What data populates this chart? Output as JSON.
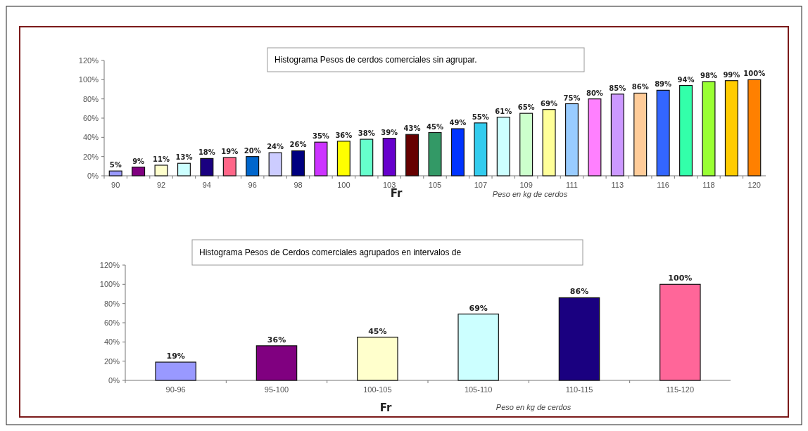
{
  "chart_data": [
    {
      "type": "bar",
      "title": "Histograma Pesos de cerdos comerciales sin agrupar.",
      "xlabel": "Fr",
      "annotations": [
        "Peso en kg de cerdos"
      ],
      "categories": [
        "90",
        null,
        "92",
        null,
        "94",
        null,
        "96",
        null,
        "98",
        null,
        "100",
        null,
        "103",
        null,
        "105",
        null,
        "107",
        null,
        "109",
        null,
        "111",
        null,
        "113",
        null,
        "116",
        null,
        "118",
        null,
        "120"
      ],
      "values": [
        5,
        9,
        11,
        13,
        18,
        19,
        20,
        24,
        26,
        35,
        36,
        38,
        39,
        43,
        45,
        49,
        55,
        61,
        65,
        69,
        75,
        80,
        85,
        86,
        89,
        94,
        98,
        99,
        100
      ],
      "value_labels": [
        "5%",
        "9%",
        "11%",
        "13%",
        "18%",
        "19%",
        "20%",
        "24%",
        "26%",
        "35%",
        "36%",
        "38%",
        "39%",
        "43%",
        "45%",
        "49%",
        "55%",
        "61%",
        "65%",
        "69%",
        "75%",
        "80%",
        "85%",
        "86%",
        "89%",
        "94%",
        "98%",
        "99%",
        "100%"
      ],
      "colors": [
        "#9999ff",
        "#800080",
        "#ffffcc",
        "#ccffff",
        "#1a0080",
        "#ff6688",
        "#0066cc",
        "#ccccff",
        "#000080",
        "#cc33ff",
        "#ffff00",
        "#66ffcc",
        "#6600cc",
        "#660000",
        "#339966",
        "#0033ff",
        "#33ccee",
        "#ccffff",
        "#ccffcc",
        "#ffff99",
        "#99ccff",
        "#ff80ff",
        "#cc99ff",
        "#ffcc99",
        "#3366ff",
        "#33ffaa",
        "#99ff33",
        "#ffcc00",
        "#ff8000"
      ],
      "ylim": [
        0,
        120
      ],
      "yticks": [
        {
          "value": 0,
          "label": "0%"
        },
        {
          "value": 20,
          "label": "20%"
        },
        {
          "value": 40,
          "label": "40%"
        },
        {
          "value": 60,
          "label": "60%"
        },
        {
          "value": 80,
          "label": "80%"
        },
        {
          "value": 100,
          "label": "100%"
        },
        {
          "value": 120,
          "label": "120%"
        }
      ]
    },
    {
      "type": "bar",
      "title": "Histograma Pesos de Cerdos comerciales agrupados en intervalos de",
      "xlabel": "Fr",
      "annotations": [
        "Peso en kg de cerdos"
      ],
      "categories": [
        "90-96",
        "95-100",
        "100-105",
        "105-110",
        "110-115",
        "115-120"
      ],
      "values": [
        19,
        36,
        45,
        69,
        86,
        100
      ],
      "value_labels": [
        "19%",
        "36%",
        "45%",
        "69%",
        "86%",
        "100%"
      ],
      "colors": [
        "#9999ff",
        "#800080",
        "#ffffcc",
        "#ccffff",
        "#1a0080",
        "#ff6699"
      ],
      "ylim": [
        0,
        120
      ],
      "yticks": [
        {
          "value": 0,
          "label": "0%"
        },
        {
          "value": 20,
          "label": "20%"
        },
        {
          "value": 40,
          "label": "40%"
        },
        {
          "value": 60,
          "label": "60%"
        },
        {
          "value": 80,
          "label": "80%"
        },
        {
          "value": 100,
          "label": "100%"
        },
        {
          "value": 120,
          "label": "120%"
        }
      ]
    }
  ]
}
